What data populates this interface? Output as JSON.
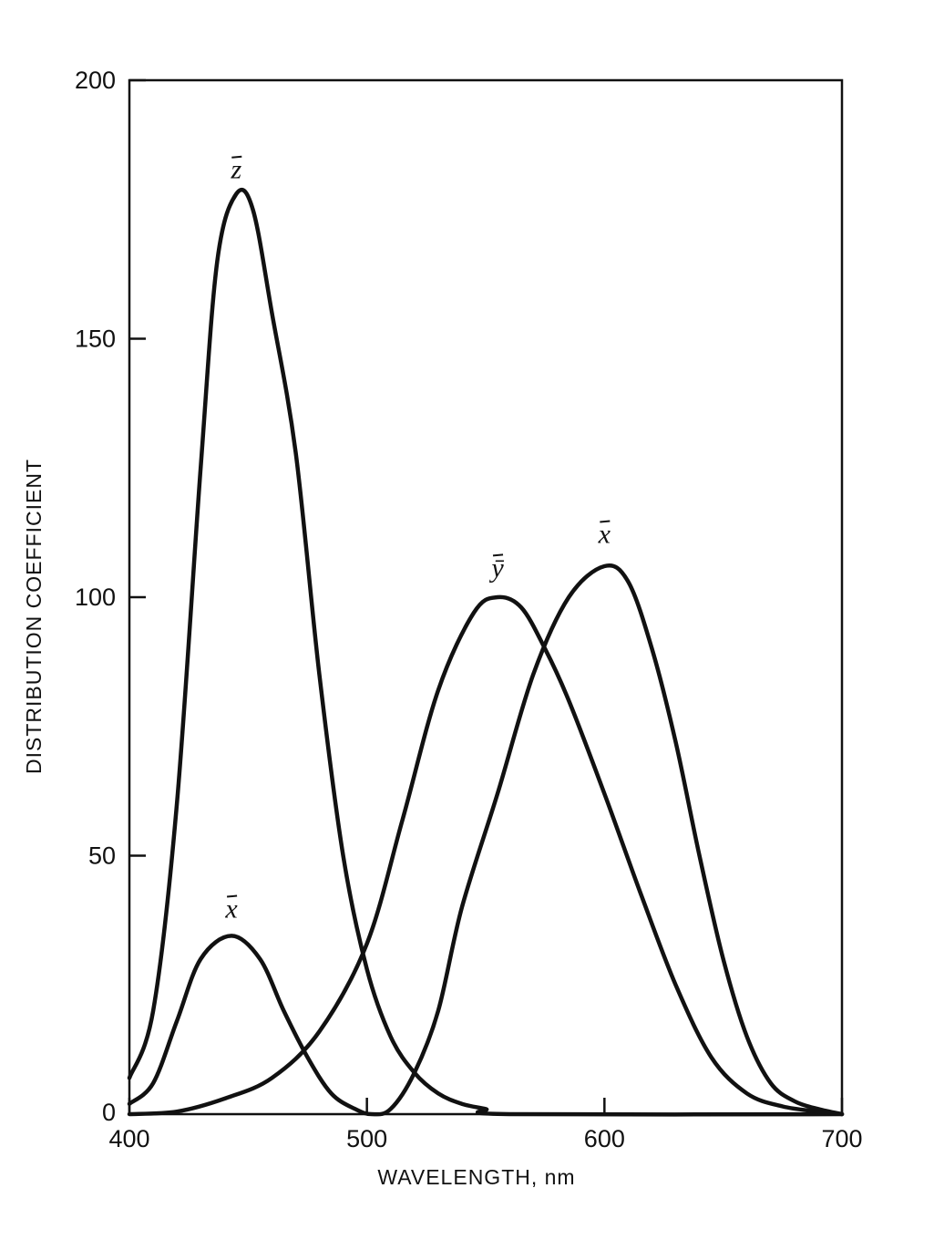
{
  "chart_data": {
    "type": "line",
    "xlabel": "WAVELENGTH, nm",
    "ylabel": "DISTRIBUTION COEFFICIENT",
    "xlim": [
      400,
      700
    ],
    "ylim": [
      0,
      200
    ],
    "xticks": [
      400,
      500,
      600,
      700
    ],
    "yticks": [
      0,
      50,
      100,
      150,
      200
    ],
    "grid": false,
    "series": [
      {
        "name": "z̄",
        "label_at": [
          445,
          181
        ],
        "points": [
          [
            400,
            7
          ],
          [
            410,
            20
          ],
          [
            420,
            60
          ],
          [
            430,
            125
          ],
          [
            437,
            165
          ],
          [
            445,
            178
          ],
          [
            452,
            175
          ],
          [
            460,
            155
          ],
          [
            470,
            128
          ],
          [
            480,
            85
          ],
          [
            490,
            50
          ],
          [
            500,
            28
          ],
          [
            510,
            15
          ],
          [
            520,
            8
          ],
          [
            530,
            4
          ],
          [
            540,
            2
          ],
          [
            550,
            1
          ],
          [
            560,
            0
          ],
          [
            700,
            0
          ]
        ]
      },
      {
        "name": "x̄",
        "label_at": [
          443,
          38
        ],
        "points": [
          [
            400,
            2
          ],
          [
            410,
            6
          ],
          [
            420,
            18
          ],
          [
            430,
            30
          ],
          [
            443,
            34.5
          ],
          [
            455,
            30
          ],
          [
            465,
            20
          ],
          [
            475,
            11
          ],
          [
            485,
            4
          ],
          [
            495,
            1
          ],
          [
            502,
            0
          ],
          [
            510,
            1
          ],
          [
            520,
            8
          ],
          [
            530,
            20
          ],
          [
            540,
            40
          ],
          [
            555,
            62
          ],
          [
            570,
            85
          ],
          [
            585,
            100
          ],
          [
            600,
            106
          ],
          [
            610,
            103
          ],
          [
            620,
            90
          ],
          [
            630,
            72
          ],
          [
            640,
            50
          ],
          [
            650,
            30
          ],
          [
            660,
            15
          ],
          [
            670,
            6
          ],
          [
            680,
            2.5
          ],
          [
            690,
            1
          ],
          [
            700,
            0
          ]
        ]
      },
      {
        "name": "ȳ",
        "label_at": [
          555,
          104
        ],
        "points": [
          [
            400,
            0
          ],
          [
            420,
            0.5
          ],
          [
            440,
            3
          ],
          [
            460,
            7
          ],
          [
            480,
            16
          ],
          [
            500,
            33
          ],
          [
            515,
            57
          ],
          [
            530,
            82
          ],
          [
            545,
            97
          ],
          [
            555,
            100
          ],
          [
            565,
            98
          ],
          [
            575,
            90
          ],
          [
            585,
            80
          ],
          [
            600,
            62
          ],
          [
            615,
            43
          ],
          [
            630,
            25
          ],
          [
            645,
            11
          ],
          [
            660,
            4
          ],
          [
            675,
            1.5
          ],
          [
            690,
            0.5
          ],
          [
            700,
            0
          ]
        ]
      }
    ]
  }
}
